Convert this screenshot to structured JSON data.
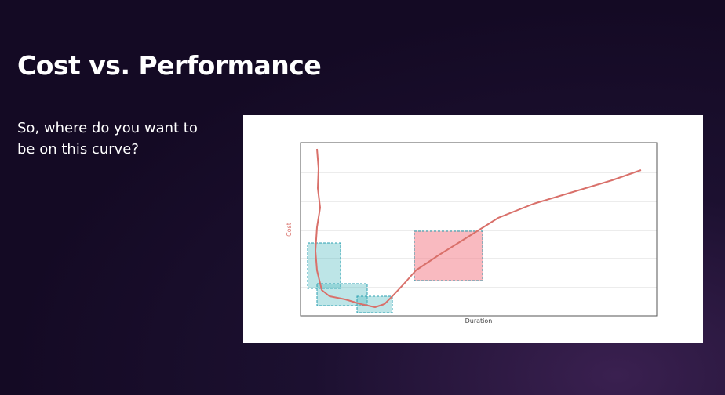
{
  "slide": {
    "title": "Cost vs. Performance",
    "text": "So, where do you want to be on this curve?"
  },
  "figure": {
    "y_label": "Cost",
    "x_label": "Duration"
  }
}
